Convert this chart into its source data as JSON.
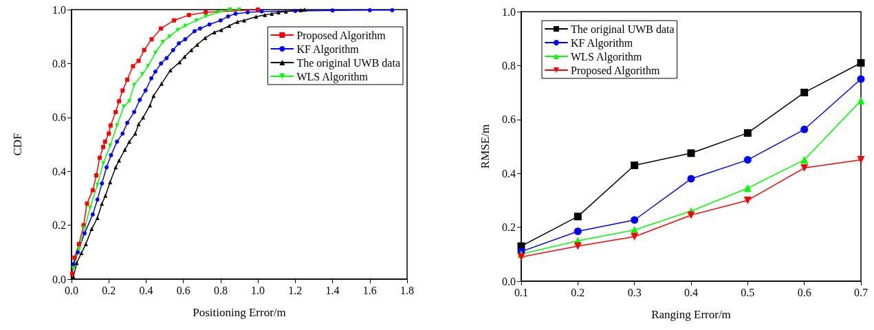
{
  "chart_data": [
    {
      "type": "line",
      "xlabel": "Positioning Error/m",
      "ylabel": "CDF",
      "xlim": [
        0,
        1.8
      ],
      "ylim": [
        0,
        1
      ],
      "xticks": [
        {
          "value": 0,
          "label": "0.0"
        },
        {
          "value": 0.2,
          "label": "0.2"
        },
        {
          "value": 0.4,
          "label": "0.4"
        },
        {
          "value": 0.6,
          "label": "0.6"
        },
        {
          "value": 0.8,
          "label": "0.8"
        },
        {
          "value": 1,
          "label": "1.0"
        },
        {
          "value": 1.2,
          "label": "1.2"
        },
        {
          "value": 1.4,
          "label": "1.4"
        },
        {
          "value": 1.6,
          "label": "1.6"
        },
        {
          "value": 1.8,
          "label": "1.8"
        }
      ],
      "yticks": [
        {
          "value": 0,
          "label": "0.0"
        },
        {
          "value": 0.2,
          "label": "0.2"
        },
        {
          "value": 0.4,
          "label": "0.4"
        },
        {
          "value": 0.6,
          "label": "0.6"
        },
        {
          "value": 0.8,
          "label": "0.8"
        },
        {
          "value": 1,
          "label": "1.0"
        }
      ],
      "grid": false,
      "legend": "top right",
      "line_style": "solid",
      "series": [
        {
          "name": "Proposed Algorithm",
          "color": "#ff0000",
          "marker": "square",
          "x": [
            0.004,
            0.016,
            0.04,
            0.065,
            0.083,
            0.114,
            0.133,
            0.151,
            0.17,
            0.18,
            0.2,
            0.21,
            0.237,
            0.255,
            0.274,
            0.299,
            0.33,
            0.36,
            0.39,
            0.43,
            0.48,
            0.55,
            0.63,
            0.72,
            1.0
          ],
          "values": [
            0.02,
            0.08,
            0.13,
            0.2,
            0.28,
            0.33,
            0.385,
            0.45,
            0.49,
            0.51,
            0.54,
            0.57,
            0.62,
            0.66,
            0.7,
            0.74,
            0.79,
            0.81,
            0.85,
            0.89,
            0.93,
            0.96,
            0.98,
            0.99,
            1.0
          ]
        },
        {
          "name": "KF Algorithm",
          "color": "#0000ff",
          "marker": "circle",
          "x": [
            0.01,
            0.034,
            0.07,
            0.114,
            0.139,
            0.163,
            0.188,
            0.212,
            0.244,
            0.274,
            0.299,
            0.336,
            0.366,
            0.397,
            0.428,
            0.45,
            0.48,
            0.51,
            0.545,
            0.576,
            0.61,
            0.66,
            0.69,
            0.74,
            0.8,
            0.84,
            0.88,
            0.945,
            1.02,
            1.2,
            1.4,
            1.6,
            1.72
          ],
          "values": [
            0.055,
            0.1,
            0.17,
            0.24,
            0.295,
            0.355,
            0.415,
            0.46,
            0.51,
            0.54,
            0.58,
            0.62,
            0.665,
            0.7,
            0.745,
            0.77,
            0.8,
            0.82,
            0.85,
            0.875,
            0.89,
            0.92,
            0.93,
            0.945,
            0.96,
            0.975,
            0.985,
            0.99,
            0.993,
            0.995,
            0.997,
            0.998,
            0.998
          ]
        },
        {
          "name": "The original UWB data",
          "color": "#000000",
          "marker": "triangle",
          "x": [
            0.01,
            0.028,
            0.053,
            0.077,
            0.108,
            0.139,
            0.163,
            0.182,
            0.207,
            0.237,
            0.255,
            0.286,
            0.31,
            0.342,
            0.36,
            0.384,
            0.421,
            0.44,
            0.483,
            0.53,
            0.58,
            0.606,
            0.643,
            0.674,
            0.717,
            0.766,
            0.803,
            0.846,
            0.89,
            0.926,
            0.99,
            1.037,
            1.074,
            1.11,
            1.15,
            1.23,
            1.25
          ],
          "values": [
            0.008,
            0.06,
            0.097,
            0.13,
            0.186,
            0.227,
            0.28,
            0.31,
            0.36,
            0.415,
            0.44,
            0.48,
            0.51,
            0.54,
            0.575,
            0.6,
            0.645,
            0.68,
            0.725,
            0.775,
            0.805,
            0.825,
            0.85,
            0.87,
            0.895,
            0.916,
            0.925,
            0.94,
            0.955,
            0.96,
            0.974,
            0.98,
            0.985,
            0.99,
            0.993,
            0.998,
            1.0
          ]
        },
        {
          "name": "WLS Algorithm",
          "color": "#00ff00",
          "marker": "triangle-down",
          "x": [
            0.01,
            0.04,
            0.07,
            0.1,
            0.139,
            0.17,
            0.207,
            0.244,
            0.28,
            0.31,
            0.336,
            0.38,
            0.41,
            0.45,
            0.49,
            0.526,
            0.57,
            0.61,
            0.67,
            0.72,
            0.785,
            0.85,
            0.9
          ],
          "values": [
            0.04,
            0.11,
            0.19,
            0.265,
            0.35,
            0.43,
            0.495,
            0.57,
            0.64,
            0.66,
            0.72,
            0.76,
            0.79,
            0.84,
            0.88,
            0.9,
            0.925,
            0.94,
            0.96,
            0.975,
            0.99,
            1.0,
            1.0
          ]
        }
      ]
    },
    {
      "type": "line",
      "xlabel": "Ranging Error/m",
      "ylabel": "RMSE/m",
      "xlim": [
        0.1,
        0.7
      ],
      "ylim": [
        0,
        1
      ],
      "xticks": [
        0.1,
        0.2,
        0.3,
        0.4,
        0.5,
        0.6,
        0.7
      ],
      "yticks": [
        {
          "value": 0,
          "label": "0.0"
        },
        {
          "value": 0.2,
          "label": "0.2"
        },
        {
          "value": 0.4,
          "label": "0.4"
        },
        {
          "value": 0.6,
          "label": "0.6"
        },
        {
          "value": 0.8,
          "label": "0.8"
        },
        {
          "value": 1,
          "label": "1.0"
        }
      ],
      "grid": false,
      "legend": "top left",
      "line_style": "solid",
      "x": [
        0.1,
        0.2,
        0.3,
        0.4,
        0.5,
        0.6,
        0.7
      ],
      "series": [
        {
          "name": "The original UWB data",
          "color": "#000000",
          "marker": "square",
          "values": [
            0.13,
            0.24,
            0.43,
            0.475,
            0.55,
            0.7,
            0.81
          ]
        },
        {
          "name": "KF Algorithm",
          "color": "#0000ff",
          "marker": "circle",
          "values": [
            0.11,
            0.185,
            0.227,
            0.38,
            0.45,
            0.563,
            0.75
          ]
        },
        {
          "name": "WLS Algorithm",
          "color": "#00ff00",
          "marker": "triangle",
          "values": [
            0.1,
            0.15,
            0.19,
            0.26,
            0.345,
            0.45,
            0.67
          ]
        },
        {
          "name": "Proposed Algorithm",
          "color": "#ff0000",
          "marker": "triangle-down",
          "values": [
            0.09,
            0.13,
            0.165,
            0.245,
            0.3,
            0.42,
            0.45
          ]
        }
      ]
    }
  ]
}
